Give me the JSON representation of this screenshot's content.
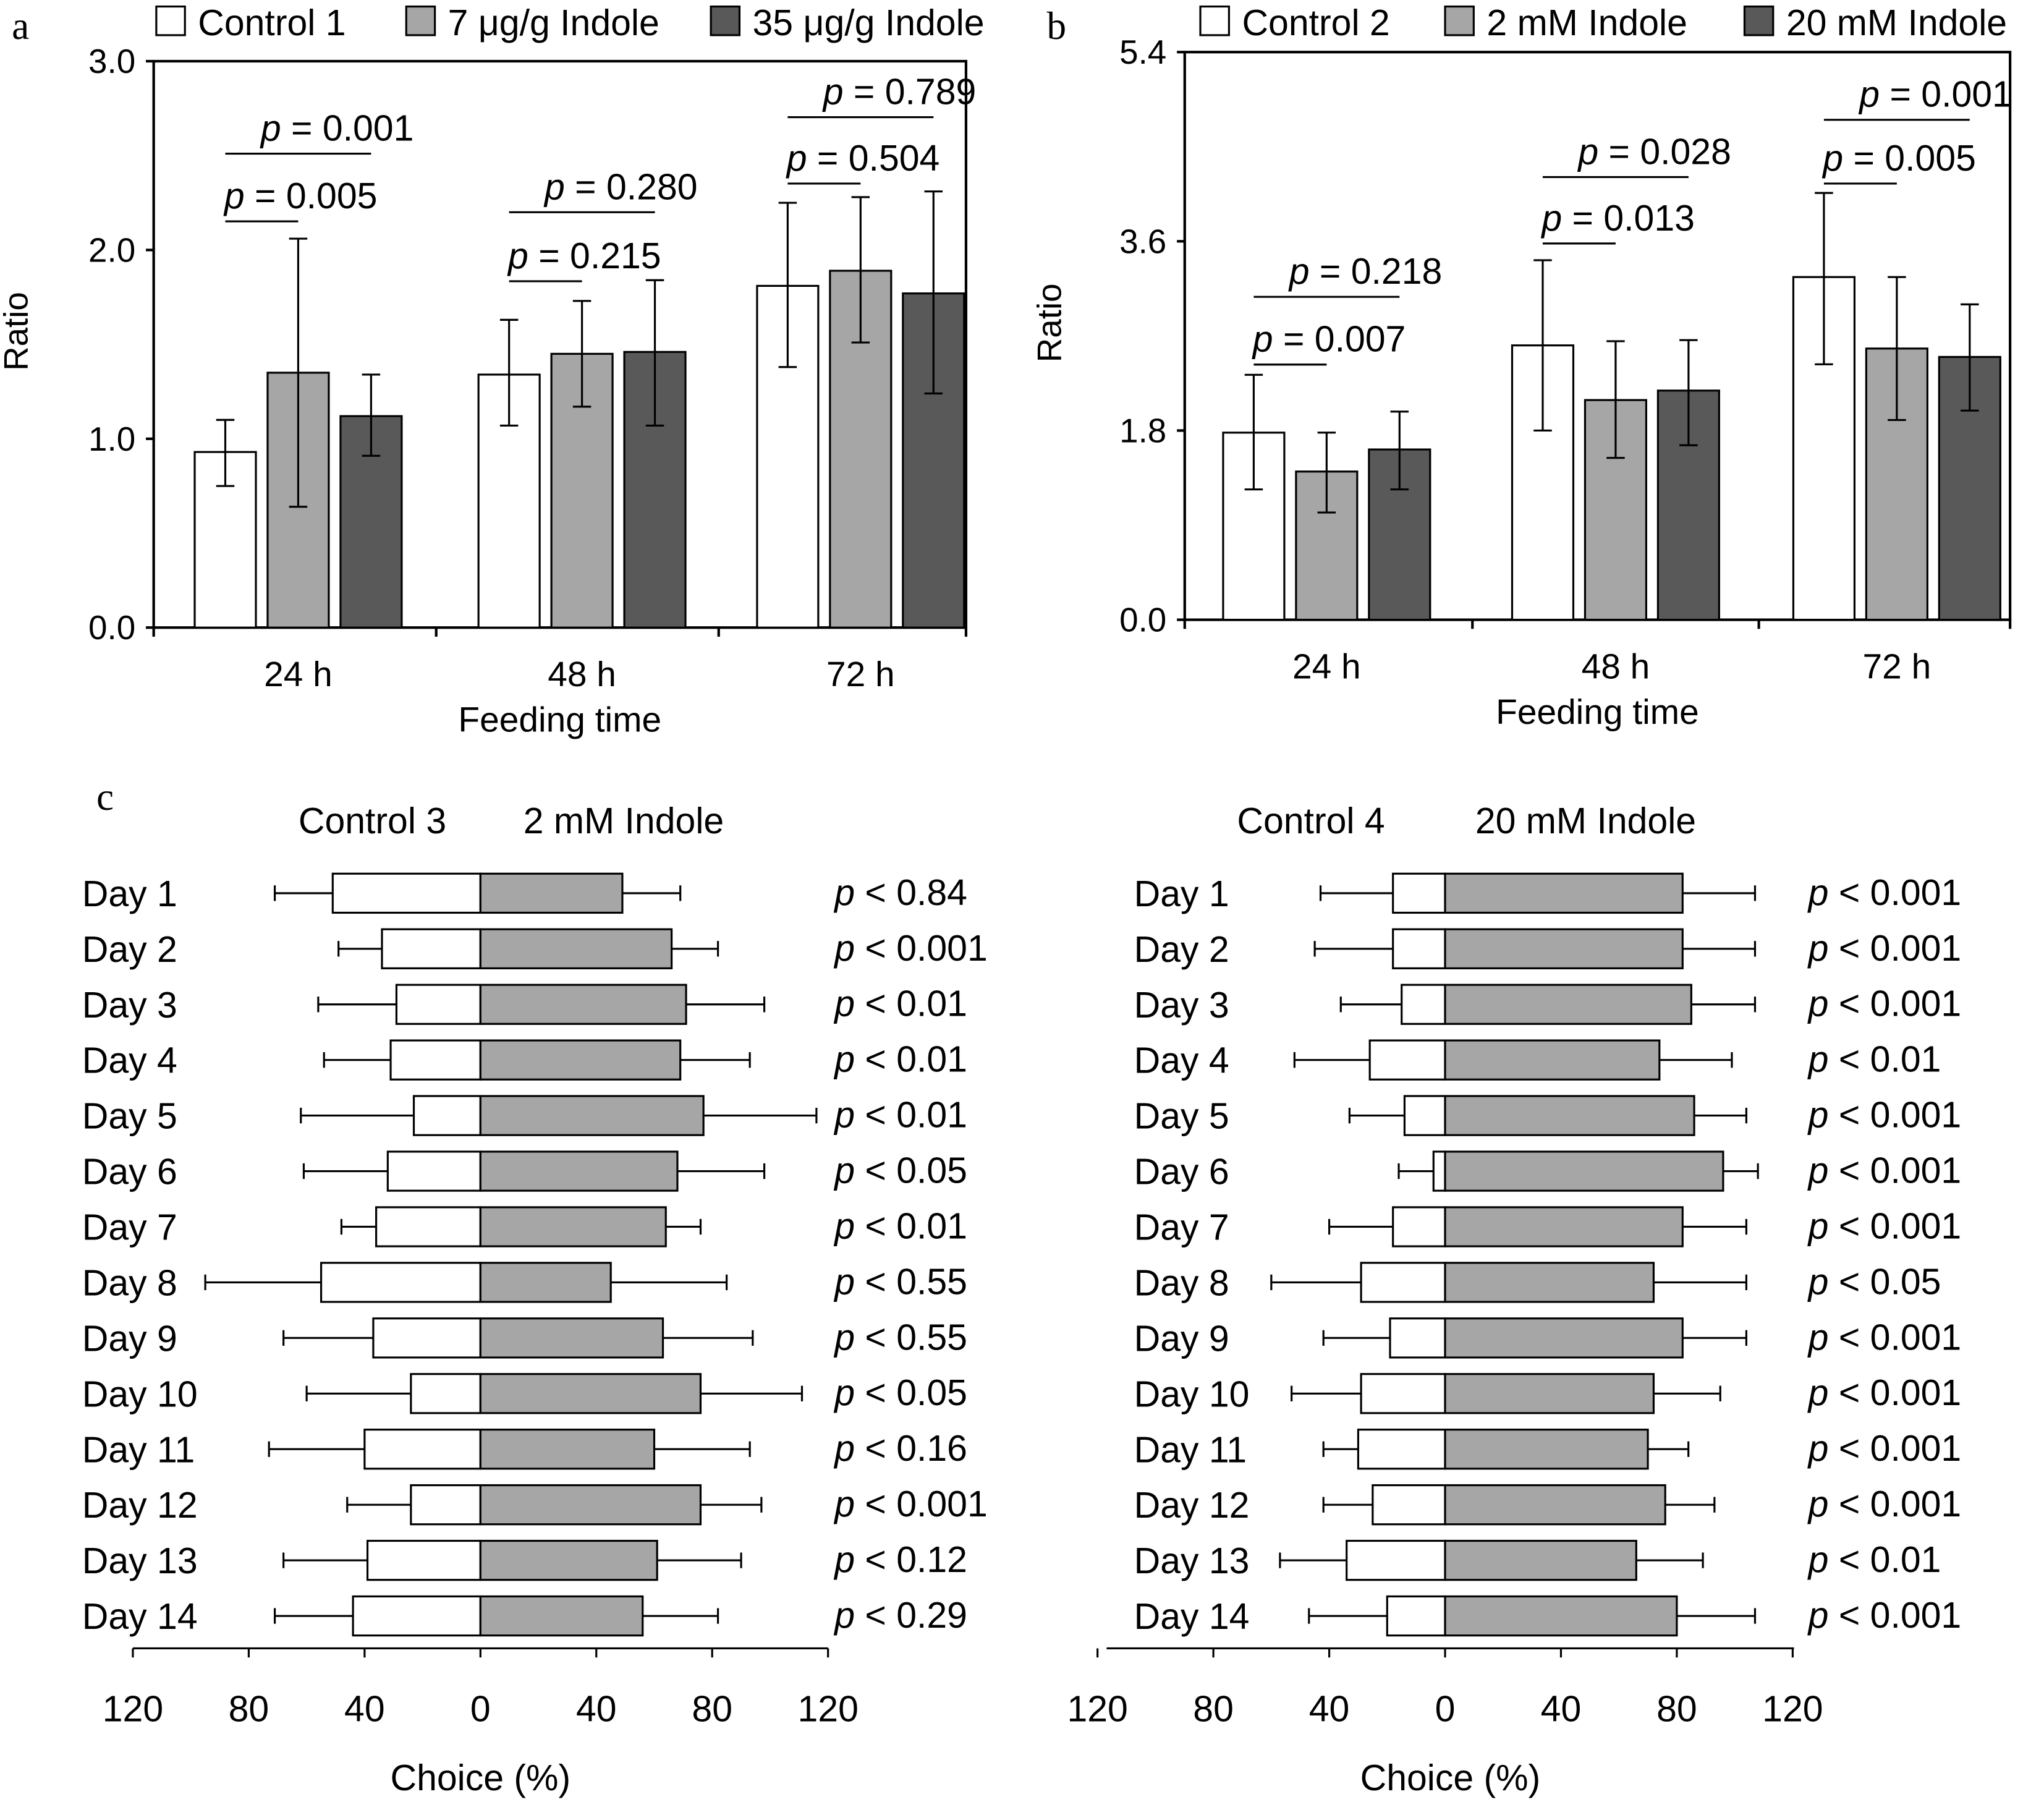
{
  "colors": {
    "control": "#ffffff",
    "light": "#a6a6a6",
    "dark": "#595959",
    "stroke": "#000000"
  },
  "chart_data": [
    {
      "panel": "a",
      "type": "bar",
      "xlabel": "Feeding time",
      "ylabel": "Ratio",
      "ylim": [
        0,
        3
      ],
      "yticks": [
        "0.0",
        "1.0",
        "2.0",
        "3.0"
      ],
      "categories": [
        "24 h",
        "48 h",
        "72 h"
      ],
      "legend_position": "top",
      "series": [
        {
          "name": "Control 1",
          "color": "#ffffff",
          "values": [
            0.93,
            1.34,
            1.81
          ],
          "err_low": [
            0.75,
            1.07,
            1.38
          ],
          "err_high": [
            1.1,
            1.63,
            2.25
          ]
        },
        {
          "name": "7 μg/g Indole",
          "color": "#a6a6a6",
          "values": [
            1.35,
            1.45,
            1.89
          ],
          "err_low": [
            0.64,
            1.17,
            1.51
          ],
          "err_high": [
            2.06,
            1.73,
            2.28
          ]
        },
        {
          "name": "35 μg/g Indole",
          "color": "#595959",
          "values": [
            1.12,
            1.46,
            1.77
          ],
          "err_low": [
            0.91,
            1.07,
            1.24
          ],
          "err_high": [
            1.34,
            1.84,
            2.31
          ]
        }
      ],
      "comparisons": [
        {
          "group": 0,
          "to_series": 1,
          "p": "0.005"
        },
        {
          "group": 0,
          "to_series": 2,
          "p": "0.001"
        },
        {
          "group": 1,
          "to_series": 1,
          "p": "0.215"
        },
        {
          "group": 1,
          "to_series": 2,
          "p": "0.280"
        },
        {
          "group": 2,
          "to_series": 1,
          "p": "0.504"
        },
        {
          "group": 2,
          "to_series": 2,
          "p": "0.789"
        }
      ]
    },
    {
      "panel": "b",
      "type": "bar",
      "xlabel": "Feeding time",
      "ylabel": "Ratio",
      "ylim": [
        0,
        5.4
      ],
      "yticks": [
        "0.0",
        "1.8",
        "3.6",
        "5.4"
      ],
      "categories": [
        "24 h",
        "48 h",
        "72 h"
      ],
      "legend_position": "top",
      "series": [
        {
          "name": "Control 2",
          "color": "#ffffff",
          "values": [
            1.78,
            2.61,
            3.26
          ],
          "err_low": [
            1.24,
            1.8,
            2.43
          ],
          "err_high": [
            2.33,
            3.42,
            4.06
          ]
        },
        {
          "name": "2 mM Indole",
          "color": "#a6a6a6",
          "values": [
            1.41,
            2.09,
            2.58
          ],
          "err_low": [
            1.02,
            1.54,
            1.9
          ],
          "err_high": [
            1.78,
            2.65,
            3.26
          ]
        },
        {
          "name": "20 mM Indole",
          "color": "#595959",
          "values": [
            1.62,
            2.18,
            2.5
          ],
          "err_low": [
            1.24,
            1.66,
            1.99
          ],
          "err_high": [
            1.98,
            2.66,
            3.0
          ]
        }
      ],
      "comparisons": [
        {
          "group": 0,
          "to_series": 1,
          "p": "0.007"
        },
        {
          "group": 0,
          "to_series": 2,
          "p": "0.218"
        },
        {
          "group": 1,
          "to_series": 1,
          "p": "0.013"
        },
        {
          "group": 1,
          "to_series": 2,
          "p": "0.028"
        },
        {
          "group": 2,
          "to_series": 1,
          "p": "0.005"
        },
        {
          "group": 2,
          "to_series": 2,
          "p": "0.001"
        }
      ]
    },
    {
      "panel": "c",
      "type": "bar",
      "orientation": "horizontal-diverging",
      "xlabel": "Choice (%)",
      "xticks": [
        "120",
        "80",
        "40",
        "0",
        "40",
        "80",
        "120"
      ],
      "xlim": [
        -120,
        120
      ],
      "left_label": "Control 3",
      "right_label": "2 mM Indole",
      "categories": [
        "Day 1",
        "Day 2",
        "Day 3",
        "Day 4",
        "Day 5",
        "Day 6",
        "Day 7",
        "Day 8",
        "Day 9",
        "Day 10",
        "Day 11",
        "Day 12",
        "Day 13",
        "Day 14"
      ],
      "control": [
        51,
        34,
        29,
        31,
        23,
        32,
        36,
        55,
        37,
        24,
        40,
        24,
        39,
        44
      ],
      "control_err": [
        71,
        49,
        56,
        54,
        62,
        61,
        48,
        95,
        68,
        60,
        73,
        46,
        68,
        71
      ],
      "treatment": [
        49,
        66,
        71,
        69,
        77,
        68,
        64,
        45,
        63,
        76,
        60,
        76,
        61,
        56
      ],
      "treatment_err": [
        69,
        82,
        98,
        93,
        116,
        98,
        76,
        85,
        94,
        111,
        93,
        97,
        90,
        82
      ],
      "p_values": [
        "< 0.84",
        "< 0.001",
        "< 0.01",
        "< 0.01",
        "< 0.01",
        "< 0.05",
        "< 0.01",
        "< 0.55",
        "< 0.55",
        "< 0.05",
        "< 0.16",
        "< 0.001",
        "< 0.12",
        "< 0.29"
      ]
    },
    {
      "panel": "c",
      "type": "bar",
      "orientation": "horizontal-diverging",
      "xlabel": "Choice (%)",
      "xticks": [
        "120",
        "80",
        "40",
        "0",
        "40",
        "80",
        "120"
      ],
      "xlim": [
        -120,
        120
      ],
      "left_label": "Control 4",
      "right_label": "20 mM Indole",
      "categories": [
        "Day 1",
        "Day 2",
        "Day 3",
        "Day 4",
        "Day 5",
        "Day 6",
        "Day 7",
        "Day 8",
        "Day 9",
        "Day 10",
        "Day 11",
        "Day 12",
        "Day 13",
        "Day 14"
      ],
      "control": [
        18,
        18,
        15,
        26,
        14,
        4,
        18,
        29,
        19,
        29,
        30,
        25,
        34,
        20
      ],
      "control_err": [
        43,
        45,
        36,
        52,
        33,
        16,
        40,
        60,
        42,
        53,
        42,
        42,
        57,
        47
      ],
      "treatment": [
        82,
        82,
        85,
        74,
        86,
        96,
        82,
        72,
        82,
        72,
        70,
        76,
        66,
        80
      ],
      "treatment_err": [
        107,
        107,
        107,
        99,
        104,
        108,
        104,
        104,
        104,
        95,
        84,
        93,
        89,
        107
      ],
      "p_values": [
        "< 0.001",
        "< 0.001",
        "< 0.001",
        "< 0.01",
        "< 0.001",
        "< 0.001",
        "< 0.001",
        "< 0.05",
        "< 0.001",
        "< 0.001",
        "< 0.001",
        "< 0.001",
        "< 0.01",
        "< 0.001"
      ]
    }
  ],
  "panel_labels": [
    "a",
    "b",
    "c"
  ],
  "p_symbol": "p"
}
